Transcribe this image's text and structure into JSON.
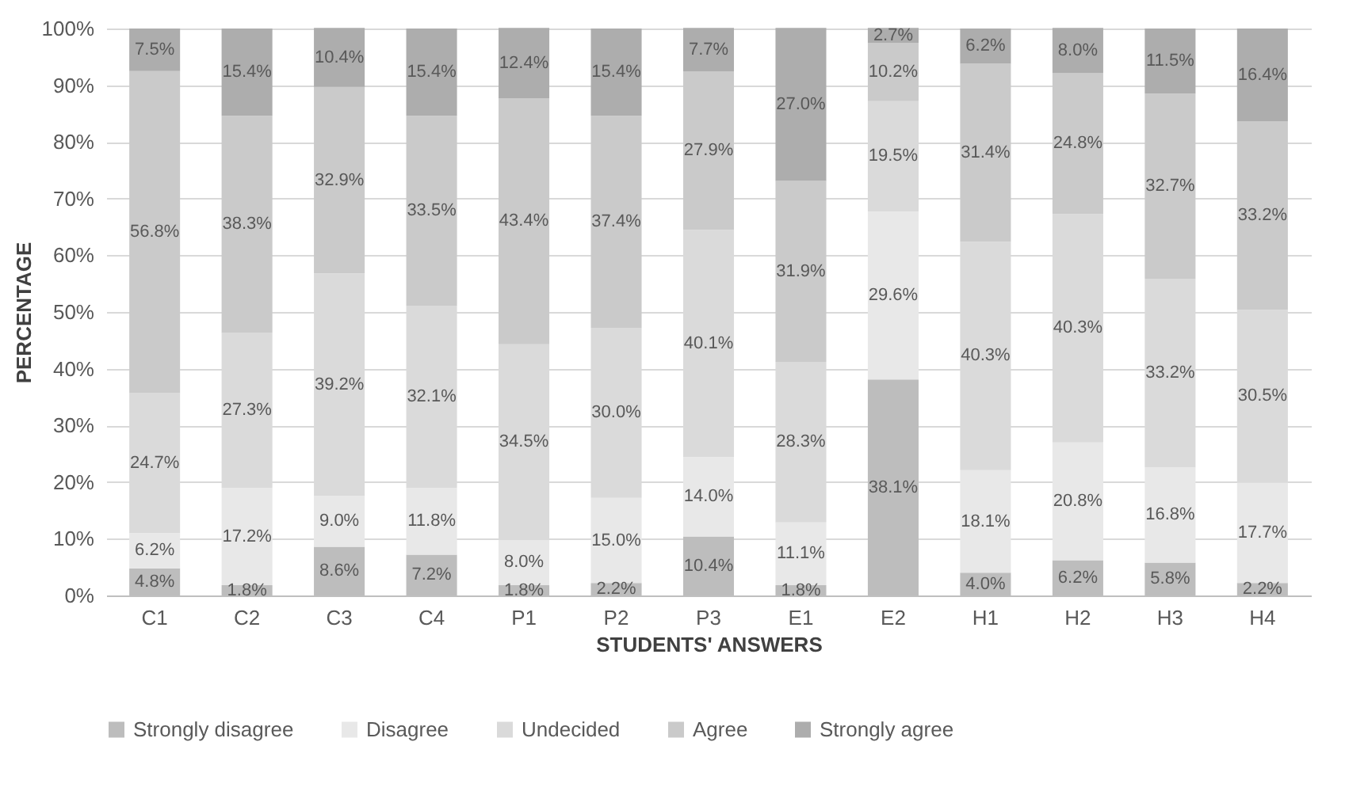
{
  "chart_data": {
    "type": "bar",
    "stacked": true,
    "xlabel": "STUDENTS' ANSWERS",
    "ylabel": "PERCENTAGE",
    "categories": [
      "C1",
      "C2",
      "C3",
      "C4",
      "P1",
      "P2",
      "P3",
      "E1",
      "E2",
      "H1",
      "H2",
      "H3",
      "H4"
    ],
    "series": [
      {
        "name": "Strongly disagree",
        "color": "#bdbdbd",
        "values": [
          4.8,
          1.8,
          8.6,
          7.2,
          1.8,
          2.2,
          10.4,
          1.8,
          38.1,
          4.0,
          6.2,
          5.8,
          2.2
        ],
        "value_labels": [
          "4.8%",
          "1.8%",
          "8.6%",
          "7.2%",
          "1.8%",
          "2.2%",
          "10.4%",
          "1.8%",
          "38.1%",
          "4.0%",
          "6.2%",
          "5.8%",
          "2.2%"
        ]
      },
      {
        "name": "Disagree",
        "color": "#e8e8e8",
        "values": [
          6.2,
          17.2,
          9.0,
          11.8,
          8.0,
          15.0,
          14.0,
          11.1,
          29.6,
          18.1,
          20.8,
          16.8,
          17.7
        ],
        "value_labels": [
          "6.2%",
          "17.2%",
          "9.0%",
          "11.8%",
          "8.0%",
          "15.0%",
          "14.0%",
          "11.1%",
          "29.6%",
          "18.1%",
          "20.8%",
          "16.8%",
          "17.7%"
        ]
      },
      {
        "name": "Undecided",
        "color": "#dadada",
        "values": [
          24.7,
          27.3,
          39.2,
          32.1,
          34.5,
          30.0,
          40.1,
          28.3,
          19.5,
          40.3,
          40.3,
          33.2,
          30.5
        ],
        "value_labels": [
          "24.7%",
          "27.3%",
          "39.2%",
          "32.1%",
          "34.5%",
          "30.0%",
          "40.1%",
          "28.3%",
          "19.5%",
          "40.3%",
          "40.3%",
          "33.2%",
          "30.5%"
        ]
      },
      {
        "name": "Agree",
        "color": "#cacaca",
        "values": [
          56.8,
          38.3,
          32.9,
          33.5,
          43.4,
          37.4,
          27.9,
          31.9,
          10.2,
          31.4,
          24.8,
          32.7,
          33.2
        ],
        "value_labels": [
          "56.8%",
          "38.3%",
          "32.9%",
          "33.5%",
          "43.4%",
          "37.4%",
          "27.9%",
          "31.9%",
          "10.2%",
          "31.4%",
          "24.8%",
          "32.7%",
          "33.2%"
        ]
      },
      {
        "name": "Strongly agree",
        "color": "#adadad",
        "values": [
          7.5,
          15.4,
          10.4,
          15.4,
          12.4,
          15.4,
          7.7,
          27.0,
          2.7,
          6.2,
          8.0,
          11.5,
          16.4
        ],
        "value_labels": [
          "7.5%",
          "15.4%",
          "10.4%",
          "15.4%",
          "12.4%",
          "15.4%",
          "7.7%",
          "27.0%",
          "2.7%",
          "6.2%",
          "8.0%",
          "11.5%",
          "16.4%"
        ]
      }
    ],
    "ylim": [
      0,
      100
    ],
    "yticks": [
      {
        "value": 0,
        "label": "0%"
      },
      {
        "value": 10,
        "label": "10%"
      },
      {
        "value": 20,
        "label": "20%"
      },
      {
        "value": 30,
        "label": "30%"
      },
      {
        "value": 40,
        "label": "40%"
      },
      {
        "value": 50,
        "label": "50%"
      },
      {
        "value": 60,
        "label": "60%"
      },
      {
        "value": 70,
        "label": "70%"
      },
      {
        "value": 80,
        "label": "80%"
      },
      {
        "value": 90,
        "label": "90%"
      },
      {
        "value": 100,
        "label": "100%"
      }
    ],
    "grid": "y",
    "legend": "bottom"
  }
}
